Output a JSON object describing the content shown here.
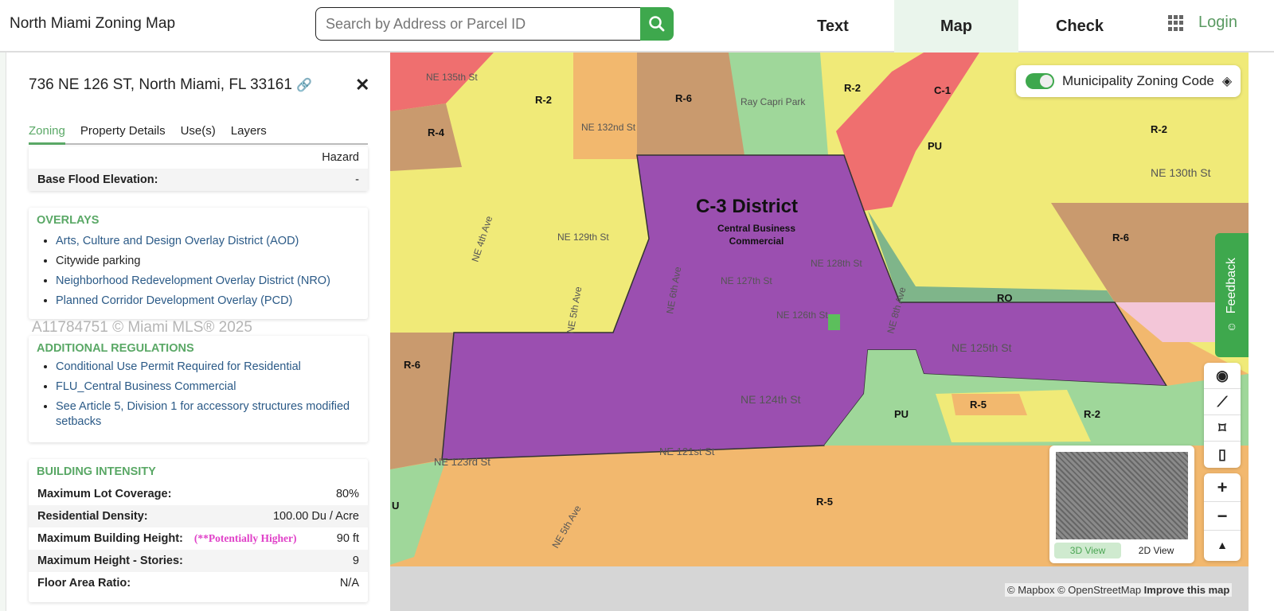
{
  "header": {
    "title": "North Miami Zoning Map",
    "search_placeholder": "Search by Address or Parcel ID",
    "nav": [
      {
        "label": "Text"
      },
      {
        "label": "Map",
        "active": true
      },
      {
        "label": "Check"
      }
    ],
    "login": "Login",
    "accent": "#3ea84d"
  },
  "panel": {
    "address": "736 NE 126 ST, North Miami, FL 33161",
    "close": "✕",
    "tabs": [
      {
        "label": "Zoning",
        "active": true
      },
      {
        "label": "Property Details"
      },
      {
        "label": "Use(s)"
      },
      {
        "label": "Layers"
      }
    ],
    "flood": {
      "hazard_text": "Hazard",
      "bfe_label": "Base Flood Elevation:",
      "bfe_value": "-"
    },
    "overlays": {
      "title": "OVERLAYS",
      "items": [
        {
          "text": "Arts, Culture and Design Overlay District (AOD)",
          "link": true
        },
        {
          "text": "Citywide parking",
          "link": false
        },
        {
          "text": "Neighborhood Redevelopment Overlay District (NRO)",
          "link": true
        },
        {
          "text": "Planned Corridor Development Overlay (PCD)",
          "link": true
        }
      ]
    },
    "regulations": {
      "title": "ADDITIONAL REGULATIONS",
      "items": [
        "Conditional Use Permit Required for Residential",
        "FLU_Central Business Commercial",
        "See Article 5, Division 1 for accessory structures modified setbacks"
      ]
    },
    "intensity": {
      "title": "BUILDING INTENSITY",
      "rows": [
        {
          "label": "Maximum Lot Coverage:",
          "value": "80%"
        },
        {
          "label": "Residential Density:",
          "value": "100.00 Du / Acre"
        },
        {
          "label": "Maximum Building Height:",
          "note": "(**Potentially Higher)",
          "value": "90 ft"
        },
        {
          "label": "Maximum Height - Stories:",
          "value": "9"
        },
        {
          "label": "Floor Area Ratio:",
          "value": "N/A"
        }
      ]
    }
  },
  "watermark": "A11784751 © Miami MLS® 2025",
  "map": {
    "toggle_label": "Municipality Zoning Code",
    "toggle_on": true,
    "district_title": "C-3 District",
    "district_sub1": "Central Business",
    "district_sub2": "Commercial",
    "zone_labels": [
      "R-2",
      "R-6",
      "R-2",
      "C-1",
      "R-2",
      "R-4",
      "PU",
      "R-6",
      "RO",
      "R-6",
      "R-5",
      "R-2",
      "PU",
      "R-5",
      "U"
    ],
    "streets": [
      "NE 135th St",
      "NE 132nd St",
      "NE 129th St",
      "NE 127th St",
      "NE 128th St",
      "NE 126th St",
      "NE 125th St",
      "NE 124th St",
      "NE 123rd St",
      "NE 121st St",
      "NE 130th St",
      "NE 4th Ave",
      "NE 5th Ave",
      "NE 6th Ave",
      "NE 8th Ave",
      "NE 5th Ave"
    ],
    "poi": [
      "Ray Capri Park"
    ],
    "feedback": "Feedback",
    "minimap": {
      "view3d": "3D View",
      "view2d": "2D View",
      "active": "3D View"
    },
    "attribution": {
      "mapbox": "© Mapbox",
      "osm": "© OpenStreetMap",
      "improve": "Improve this map"
    },
    "colors": {
      "commercial": "#9b4fb0",
      "residential_single": "#f0ea78",
      "residential_multi": "#f2b86e",
      "public": "#9fd79a",
      "c1": "#ef6f6f",
      "r6": "#c99a6e",
      "ro": "#7fb58a"
    }
  }
}
